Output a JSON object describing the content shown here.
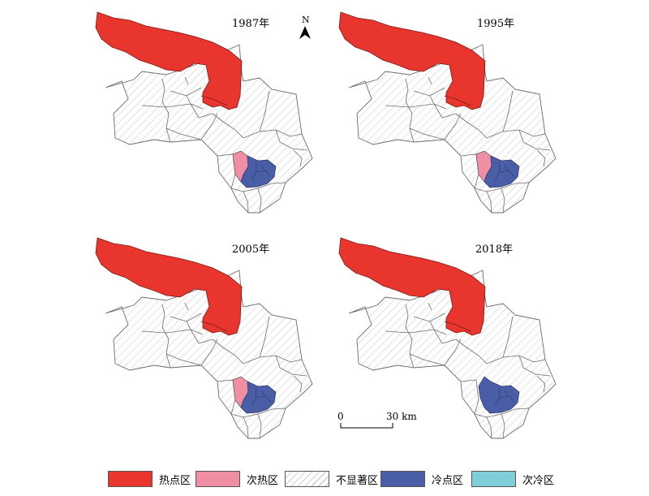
{
  "maps": [
    {
      "year": "1987年",
      "subhot": true,
      "cold": true
    },
    {
      "year": "1995年",
      "subhot": true,
      "cold": true
    },
    {
      "year": "2005年",
      "subhot": true,
      "cold": true
    },
    {
      "year": "2018年",
      "subhot": false,
      "cold": true
    }
  ],
  "north_arrow": {
    "label": "N"
  },
  "scale_bar": {
    "start": "0",
    "end": "30 km"
  },
  "legend": [
    {
      "label": "热点区",
      "color": "#e8352e",
      "pattern": false
    },
    {
      "label": "次热区",
      "color": "#f08fa4",
      "pattern": false
    },
    {
      "label": "不显著区",
      "color": "#ffffff",
      "pattern": true
    },
    {
      "label": "冷点区",
      "color": "#4a5ea8",
      "pattern": false
    },
    {
      "label": "次冷区",
      "color": "#7ecfd9",
      "pattern": false
    }
  ],
  "colors": {
    "hot": "#e8352e",
    "subhot": "#f08fa4",
    "cold": "#4a5ea8",
    "subcold": "#7ecfd9",
    "outline": "#6b6b6b"
  }
}
